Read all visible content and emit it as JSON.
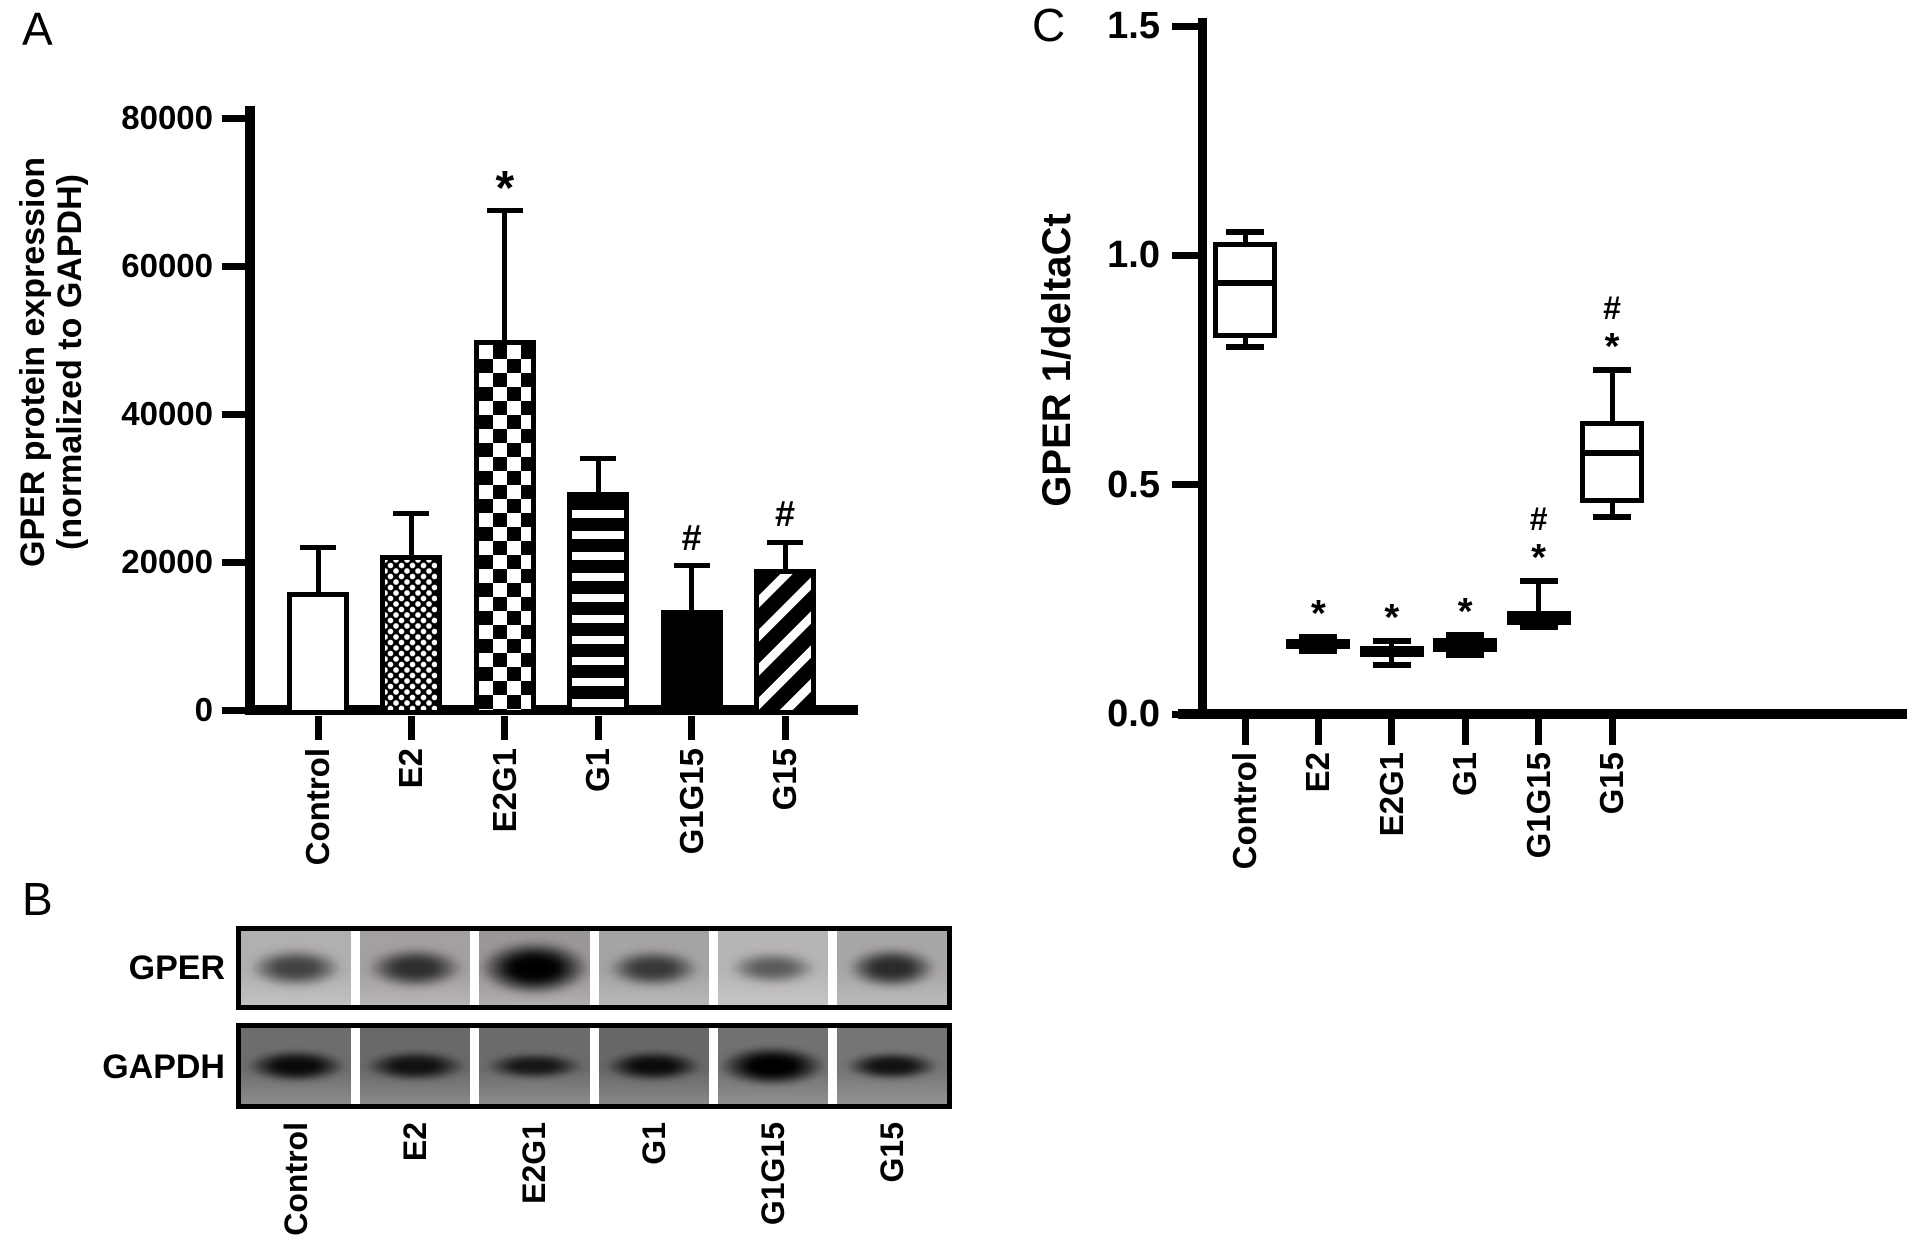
{
  "figure": {
    "background": "#ffffff",
    "ink": "#000000"
  },
  "panel_a": {
    "letter": "A",
    "ylabel_line1": "GPER protein expression",
    "ylabel_line2": "(normalized to GAPDH)",
    "ytick_labels": [
      "0",
      "20000",
      "40000",
      "60000",
      "80000"
    ]
  },
  "panel_b": {
    "letter": "B",
    "row_labels": [
      "GPER",
      "GAPDH"
    ],
    "lane_labels": [
      "Control",
      "E2",
      "E2G1",
      "G1",
      "G1G15",
      "G15"
    ]
  },
  "panel_c": {
    "letter": "C",
    "ylabel": "GPER 1/deltaCt",
    "ytick_labels": [
      "0.0",
      "0.5",
      "1.0",
      "1.5"
    ]
  },
  "chart_data": [
    {
      "panel": "A",
      "type": "bar",
      "title": "",
      "xlabel": "",
      "ylabel": "GPER protein expression (normalized to GAPDH)",
      "categories": [
        "Control",
        "E2",
        "E2G1",
        "G1",
        "G1G15",
        "G15"
      ],
      "values": [
        16000,
        21000,
        50000,
        29500,
        13500,
        19000
      ],
      "error_top": [
        22000,
        26500,
        67500,
        34000,
        19500,
        22700
      ],
      "significance": [
        "",
        "",
        "*",
        "",
        "#",
        "#"
      ],
      "bar_patterns": [
        "open",
        "fine-check",
        "coarse-check",
        "horizontal-stripes",
        "solid",
        "diagonal-stripes"
      ],
      "ylim": [
        0,
        80000
      ],
      "yticks": [
        0,
        20000,
        40000,
        60000,
        80000
      ],
      "grid": false,
      "legend": "none"
    },
    {
      "panel": "B",
      "type": "western-blot",
      "lanes": [
        "Control",
        "E2",
        "E2G1",
        "G1",
        "G1G15",
        "G15"
      ],
      "rows": [
        {
          "label": "GPER",
          "lane_bg": [
            "#b2afaf",
            "#a4a0a0",
            "#9b9797",
            "#a6a3a3",
            "#b7b4b4",
            "#a9a6a6"
          ],
          "bands": [
            {
              "intensity": 0.5,
              "width": 0.86,
              "height": 0.52
            },
            {
              "intensity": 0.62,
              "width": 0.88,
              "height": 0.55
            },
            {
              "intensity": 1.0,
              "width": 1.0,
              "height": 0.74
            },
            {
              "intensity": 0.55,
              "width": 0.85,
              "height": 0.5
            },
            {
              "intensity": 0.33,
              "width": 0.8,
              "height": 0.44
            },
            {
              "intensity": 0.66,
              "width": 0.82,
              "height": 0.55
            }
          ]
        },
        {
          "label": "GAPDH",
          "lane_bg": [
            "#6e6c6c",
            "#6a6868",
            "#6c6a6a",
            "#686666",
            "#727070",
            "#767474"
          ],
          "bands": [
            {
              "intensity": 0.88,
              "width": 0.9,
              "height": 0.42
            },
            {
              "intensity": 0.78,
              "width": 0.92,
              "height": 0.4
            },
            {
              "intensity": 0.72,
              "width": 0.9,
              "height": 0.34
            },
            {
              "intensity": 0.86,
              "width": 0.88,
              "height": 0.4
            },
            {
              "intensity": 1.0,
              "width": 0.97,
              "height": 0.52
            },
            {
              "intensity": 0.8,
              "width": 0.85,
              "height": 0.38
            }
          ]
        }
      ]
    },
    {
      "panel": "C",
      "type": "box",
      "title": "",
      "xlabel": "",
      "ylabel": "GPER 1/deltaCt",
      "categories": [
        "Control",
        "E2",
        "E2G1",
        "G1",
        "G1G15",
        "G15"
      ],
      "boxes": [
        {
          "whisker_low": 0.8,
          "q1": 0.82,
          "median": 0.94,
          "q3": 1.03,
          "whisker_high": 1.05,
          "significance": ""
        },
        {
          "whisker_low": 0.138,
          "q1": 0.145,
          "median": 0.152,
          "q3": 0.163,
          "whisker_high": 0.168,
          "significance": "*"
        },
        {
          "whisker_low": 0.107,
          "q1": 0.125,
          "median": 0.138,
          "q3": 0.148,
          "whisker_high": 0.16,
          "significance": "*"
        },
        {
          "whisker_low": 0.128,
          "q1": 0.136,
          "median": 0.15,
          "q3": 0.165,
          "whisker_high": 0.172,
          "significance": "*"
        },
        {
          "whisker_low": 0.19,
          "q1": 0.195,
          "median": 0.21,
          "q3": 0.225,
          "whisker_high": 0.29,
          "significance": "*#"
        },
        {
          "whisker_low": 0.43,
          "q1": 0.46,
          "median": 0.57,
          "q3": 0.64,
          "whisker_high": 0.75,
          "significance": "*#"
        }
      ],
      "ylim": [
        0,
        1.5
      ],
      "yticks": [
        0,
        0.5,
        1.0,
        1.5
      ],
      "grid": false,
      "legend": "none"
    }
  ]
}
